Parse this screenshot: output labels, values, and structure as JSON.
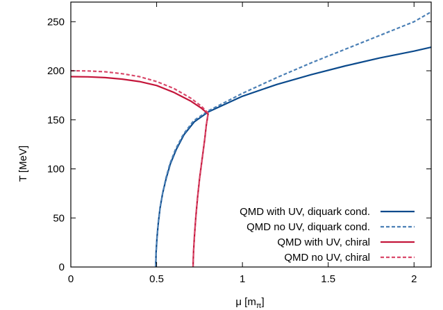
{
  "chart_data": {
    "type": "line",
    "xlabel": "μ [m",
    "xlabel_sub": "π",
    "xlabel_end": "]",
    "ylabel": "T [MeV]",
    "xlim": [
      0,
      2.1
    ],
    "ylim": [
      0,
      270
    ],
    "xticks": [
      0,
      0.5,
      1,
      1.5,
      2
    ],
    "xtick_labels": [
      "0",
      "0.5",
      "1",
      "1.5",
      "2"
    ],
    "yticks": [
      0,
      50,
      100,
      150,
      200,
      250
    ],
    "ytick_labels": [
      "0",
      "50",
      "100",
      "150",
      "200",
      "250"
    ],
    "grid": false,
    "legend_position": "bottom-right",
    "series": [
      {
        "name": "QMD with UV, diquark cond.",
        "color": "#0b4a8c",
        "dash": "solid",
        "points": [
          [
            0.495,
            0
          ],
          [
            0.497,
            15
          ],
          [
            0.502,
            30
          ],
          [
            0.51,
            45
          ],
          [
            0.52,
            60
          ],
          [
            0.535,
            75
          ],
          [
            0.555,
            90
          ],
          [
            0.58,
            105
          ],
          [
            0.615,
            120
          ],
          [
            0.66,
            135
          ],
          [
            0.72,
            148
          ],
          [
            0.8,
            158
          ],
          [
            0.9,
            166
          ],
          [
            1.0,
            174
          ],
          [
            1.2,
            186
          ],
          [
            1.4,
            196
          ],
          [
            1.6,
            205
          ],
          [
            1.8,
            213
          ],
          [
            2.0,
            220
          ],
          [
            2.1,
            224
          ]
        ]
      },
      {
        "name": "QMD no UV, diquark cond.",
        "color": "#4a7fb5",
        "dash": "dashed",
        "points": [
          [
            0.495,
            0
          ],
          [
            0.497,
            15
          ],
          [
            0.502,
            30
          ],
          [
            0.51,
            45
          ],
          [
            0.52,
            60
          ],
          [
            0.535,
            75
          ],
          [
            0.553,
            90
          ],
          [
            0.577,
            105
          ],
          [
            0.61,
            120
          ],
          [
            0.655,
            135
          ],
          [
            0.715,
            149
          ],
          [
            0.8,
            159
          ],
          [
            0.9,
            168
          ],
          [
            1.0,
            177
          ],
          [
            1.2,
            193
          ],
          [
            1.4,
            208
          ],
          [
            1.6,
            222
          ],
          [
            1.8,
            236
          ],
          [
            2.0,
            250
          ],
          [
            2.1,
            260
          ]
        ]
      },
      {
        "name": "QMD with UV, chiral",
        "color": "#c4153a",
        "dash": "solid",
        "points": [
          [
            0.0,
            194
          ],
          [
            0.1,
            193.8
          ],
          [
            0.2,
            193
          ],
          [
            0.3,
            191.5
          ],
          [
            0.4,
            189
          ],
          [
            0.5,
            185
          ],
          [
            0.6,
            178
          ],
          [
            0.7,
            169
          ],
          [
            0.76,
            162
          ],
          [
            0.8,
            156
          ],
          [
            0.79,
            145
          ],
          [
            0.78,
            130
          ],
          [
            0.765,
            110
          ],
          [
            0.75,
            90
          ],
          [
            0.738,
            70
          ],
          [
            0.728,
            50
          ],
          [
            0.72,
            30
          ],
          [
            0.715,
            15
          ],
          [
            0.712,
            0
          ]
        ]
      },
      {
        "name": "QMD no UV, chiral",
        "color": "#d9486a",
        "dash": "dashed",
        "points": [
          [
            0.0,
            200
          ],
          [
            0.1,
            199.8
          ],
          [
            0.2,
            199
          ],
          [
            0.3,
            197
          ],
          [
            0.4,
            194
          ],
          [
            0.5,
            189
          ],
          [
            0.6,
            182
          ],
          [
            0.7,
            172
          ],
          [
            0.76,
            164
          ],
          [
            0.8,
            157
          ],
          [
            0.79,
            145
          ],
          [
            0.78,
            130
          ],
          [
            0.765,
            110
          ],
          [
            0.75,
            90
          ],
          [
            0.738,
            70
          ],
          [
            0.728,
            50
          ],
          [
            0.72,
            30
          ],
          [
            0.715,
            15
          ],
          [
            0.712,
            0
          ]
        ]
      }
    ]
  }
}
